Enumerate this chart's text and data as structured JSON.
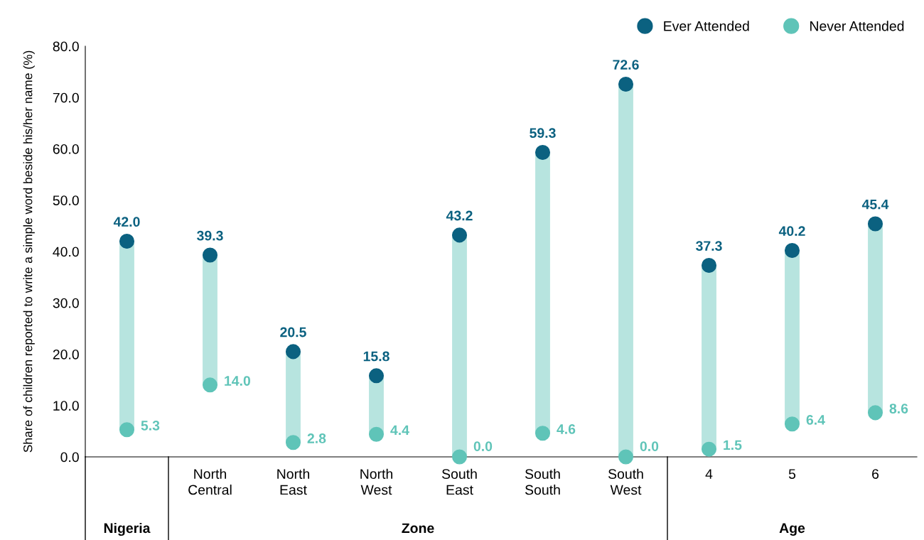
{
  "chart_data": {
    "type": "scatter",
    "ylabel": "Share of children reported to write a simple word beside his/her name (%)",
    "categories": [
      null,
      "North\nCentral",
      "North\nEast",
      "North\nWest",
      "South\nEast",
      "South\nSouth",
      "South\nWest",
      "4",
      "5",
      "6"
    ],
    "series": [
      {
        "name": "Ever Attended",
        "color": "#0b6180",
        "values": [
          42.0,
          39.3,
          20.5,
          15.8,
          43.2,
          59.3,
          72.6,
          37.3,
          40.2,
          45.4
        ],
        "value_labels": [
          "42.0",
          "39.3",
          "20.5",
          "15.8",
          "43.2",
          "59.3",
          "72.6",
          "37.3",
          "40.2",
          "45.4"
        ]
      },
      {
        "name": "Never Attended",
        "color": "#5fc4b8",
        "values": [
          5.3,
          14.0,
          2.8,
          4.4,
          0.0,
          4.6,
          0.0,
          1.5,
          6.4,
          8.6
        ],
        "value_labels": [
          "5.3",
          "14.0",
          "2.8",
          "4.4",
          "0.0",
          "4.6",
          "0.0",
          "1.5",
          "6.4",
          "8.6"
        ]
      }
    ],
    "ylim": [
      0,
      80
    ],
    "yticks": [
      {
        "value": 0,
        "label": "0.0"
      },
      {
        "value": 10,
        "label": "10.0"
      },
      {
        "value": 20,
        "label": "20.0"
      },
      {
        "value": 30,
        "label": "30.0"
      },
      {
        "value": 40,
        "label": "40.0"
      },
      {
        "value": 50,
        "label": "50.0"
      },
      {
        "value": 60,
        "label": "60.0"
      },
      {
        "value": 70,
        "label": "70.0"
      },
      {
        "value": 80,
        "label": "80.0"
      }
    ],
    "annotations": [
      "Nigeria",
      "Zone",
      "Age"
    ],
    "marker": "circle",
    "legend": "top right",
    "grid": false
  }
}
